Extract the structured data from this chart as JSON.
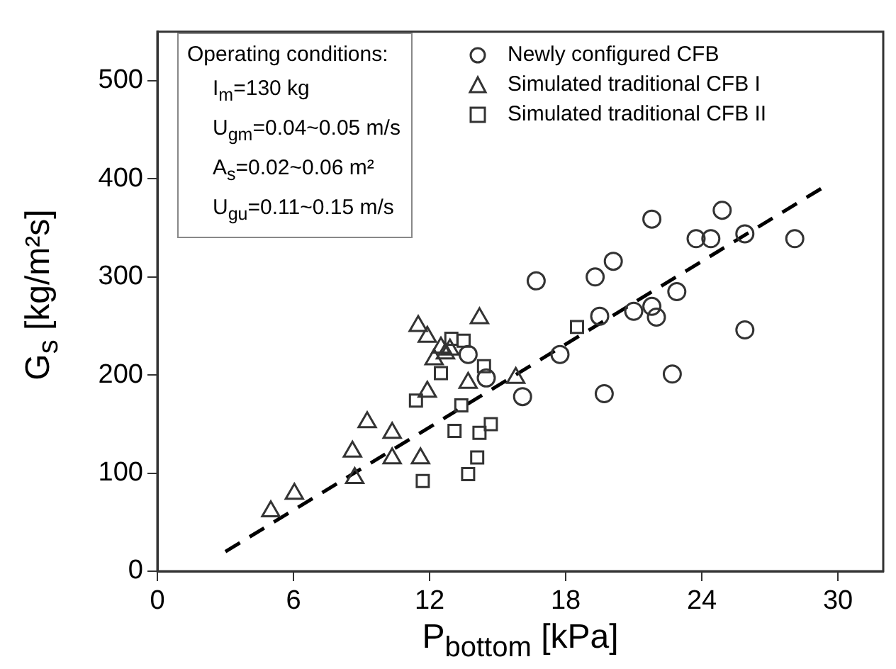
{
  "chart_data": {
    "type": "scatter",
    "xlabel": "P$_{bottom}$ [kPa]",
    "ylabel": "G$_{s}$ [kg/m²s]",
    "xlim": [
      0,
      32
    ],
    "xticks": [
      0,
      6,
      12,
      18,
      24,
      30
    ],
    "ylim": [
      0,
      550
    ],
    "yticks": [
      0,
      100,
      200,
      300,
      400,
      500
    ],
    "legend": "top right",
    "annotations": [
      "Operating conditions:",
      "I$_{m}$=130 kg",
      "U$_{gm}$=0.04~0.05 m/s",
      "A$_{s}$=0.02~0.06 m²",
      "U$_{gu}$=0.11~0.15 m/s"
    ],
    "series": [
      {
        "name": "Newly configured CFB",
        "color": "#333333",
        "marker": "circle",
        "x": [
          16.7,
          13.7,
          14.5,
          16.1,
          17.75,
          21.8,
          24.9,
          23.75,
          24.4,
          25.9,
          28.1,
          20.1,
          19.3,
          22.9,
          19.5,
          21.0,
          21.8,
          22.0,
          25.9,
          22.7,
          19.7
        ],
        "values": [
          296,
          221,
          197,
          178,
          221,
          359,
          368,
          339,
          339,
          344,
          339,
          316,
          300,
          285,
          260,
          265,
          270,
          259,
          246,
          201,
          181
        ]
      },
      {
        "name": "Simulated traditional CFB I",
        "color": "#333333",
        "marker": "triangle",
        "x": [
          5.0,
          6.04,
          8.6,
          8.7,
          9.25,
          10.35,
          10.35,
          11.5,
          11.9,
          14.2,
          12.5,
          12.7,
          12.9,
          11.9,
          13.7,
          11.6,
          15.8,
          12.2
        ],
        "values": [
          61,
          79,
          122,
          95,
          152,
          141,
          115,
          250,
          239,
          258,
          228,
          222,
          226,
          183,
          192,
          115,
          197,
          216
        ]
      },
      {
        "name": "Simulated traditional CFB II",
        "color": "#333333",
        "marker": "square",
        "x": [
          12.96,
          13.5,
          12.5,
          11.4,
          13.4,
          13.1,
          14.2,
          14.7,
          14.1,
          13.7,
          11.7,
          14.4,
          18.5
        ],
        "values": [
          237,
          235,
          202,
          174,
          169,
          143,
          141,
          150,
          116,
          99,
          92,
          209,
          249
        ]
      },
      {
        "type": "line",
        "color": "#000000",
        "marker": "none",
        "line_style": "dashed",
        "x": [
          3,
          29.4
        ],
        "values": [
          20,
          392
        ]
      }
    ]
  }
}
